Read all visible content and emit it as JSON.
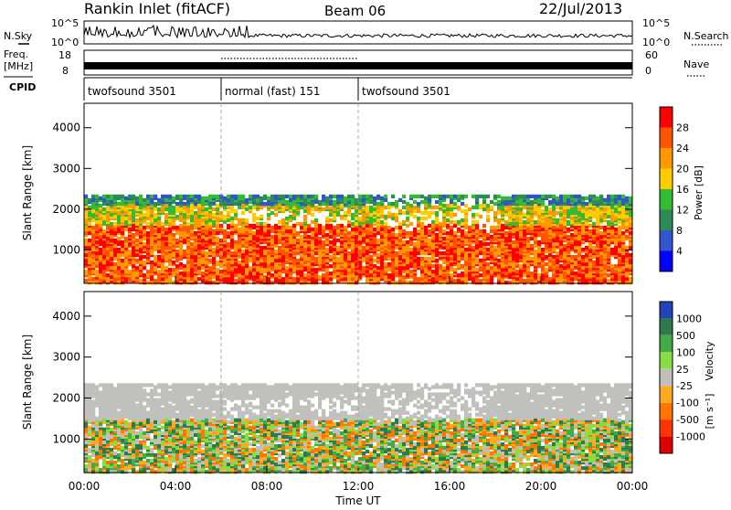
{
  "header": {
    "station": "Rankin Inlet (fitACF)",
    "beam": "Beam 06",
    "date": "22/Jul/2013"
  },
  "strips": {
    "nsky_label": "N.Sky",
    "nsearch_label": "N.Search",
    "top_ticks_left": [
      "10^5",
      "10^0"
    ],
    "top_ticks_right": [
      "10^5",
      "10^0"
    ],
    "freq_label": "Freq.",
    "freq_unit": "[MHz]",
    "freq_ticks": [
      "18",
      "8"
    ],
    "nave_label": "Nave",
    "nave_ticks": [
      "60",
      "0"
    ],
    "cpid_label": "CPID",
    "cpid_segments": [
      {
        "label": "twofsound 3501",
        "start": 0.0,
        "end": 6.0
      },
      {
        "label": "normal (fast) 151",
        "start": 6.0,
        "end": 12.0
      },
      {
        "label": "twofsound 3501",
        "start": 12.0,
        "end": 24.0
      }
    ]
  },
  "chart_data": [
    {
      "type": "heatmap",
      "title": "Power",
      "xlabel": "Time UT",
      "ylabel": "Slant Range [km]",
      "xlim": [
        0,
        24
      ],
      "ylim": [
        180,
        4600
      ],
      "x_ticks": [
        "00:00",
        "04:00",
        "08:00",
        "12:00",
        "16:00",
        "20:00",
        "00:00"
      ],
      "y_ticks": [
        "1000",
        "2000",
        "3000",
        "4000"
      ],
      "colorbar": {
        "label": "Power [dB]",
        "ticks": [
          "28",
          "24",
          "20",
          "16",
          "12",
          "8",
          "4"
        ],
        "colors": [
          "#ff0000",
          "#ff5500",
          "#ff9900",
          "#ffcc00",
          "#33bb33",
          "#2e8b57",
          "#3355cc",
          "#0000ff"
        ]
      }
    },
    {
      "type": "heatmap",
      "title": "Velocity",
      "xlabel": "Time UT",
      "ylabel": "Slant Range [km]",
      "xlim": [
        0,
        24
      ],
      "ylim": [
        180,
        4600
      ],
      "x_ticks": [
        "00:00",
        "04:00",
        "08:00",
        "12:00",
        "16:00",
        "20:00",
        "00:00"
      ],
      "y_ticks": [
        "1000",
        "2000",
        "3000",
        "4000"
      ],
      "colorbar": {
        "label": "Velocity",
        "unit": "[m s⁻¹]",
        "ticks": [
          "1000",
          "500",
          "100",
          "25",
          "-25",
          "-100",
          "-500",
          "-1000"
        ],
        "colors": [
          "#2244bb",
          "#2f7a4a",
          "#44aa44",
          "#88dd44",
          "#c0c0bc",
          "#ffaa22",
          "#ff7700",
          "#ff3300",
          "#dd0000"
        ]
      }
    }
  ]
}
